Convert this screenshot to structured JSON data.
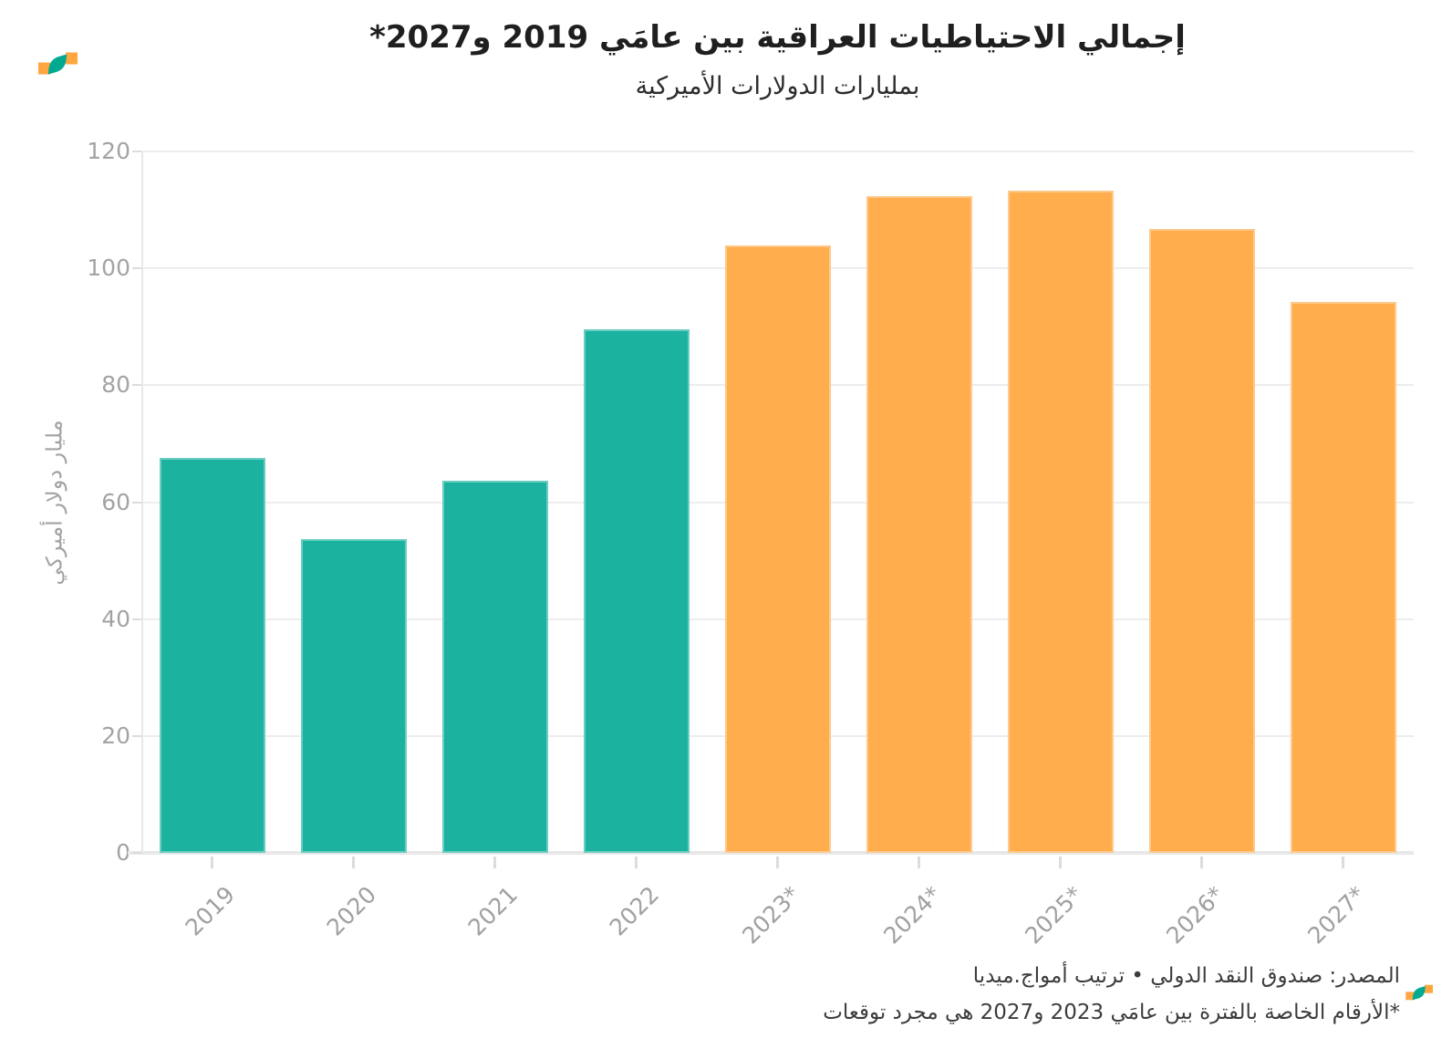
{
  "header": {
    "title": "إجمالي الاحتياطيات العراقية بين عامَي 2019 و2027*",
    "subtitle": "بمليارات الدولارات الأميركية"
  },
  "icons": {
    "brand_logo": "amwaj-wave-mark",
    "brand_logo_small": "amwaj-wave-mark-small"
  },
  "brand_colors": {
    "orange": "#FFA640",
    "teal": "#00A98F"
  },
  "chart_data": {
    "type": "bar",
    "title": "إجمالي الاحتياطيات العراقية بين عامَي 2019 و2027*",
    "subtitle": "بمليارات الدولارات الأميركية",
    "ylabel": "مليار دولار أميركي",
    "xlabel": "",
    "categories": [
      "2019",
      "2020",
      "2021",
      "2022",
      "2023*",
      "2024*",
      "2025*",
      "2026*",
      "2027*"
    ],
    "values": [
      67.5,
      53.7,
      63.6,
      89.5,
      104,
      112.4,
      113.3,
      106.7,
      94.3
    ],
    "bar_types": [
      "actual",
      "actual",
      "actual",
      "actual",
      "forecast",
      "forecast",
      "forecast",
      "forecast",
      "forecast"
    ],
    "colors": {
      "actual": "#1CB2A0",
      "forecast": "#FFAD4D"
    },
    "ylim": [
      0,
      120
    ],
    "yticks": [
      0,
      20,
      40,
      60,
      80,
      100,
      120
    ],
    "grid": true,
    "legend": false,
    "x_label_rotation_deg": 45
  },
  "footer": {
    "source": "المصدر: صندوق النقد الدولي • ترتيب أمواج.ميديا",
    "footnote": "*الأرقام الخاصة بالفترة بين عامَي 2023 و2027 هي مجرد توقعات"
  }
}
